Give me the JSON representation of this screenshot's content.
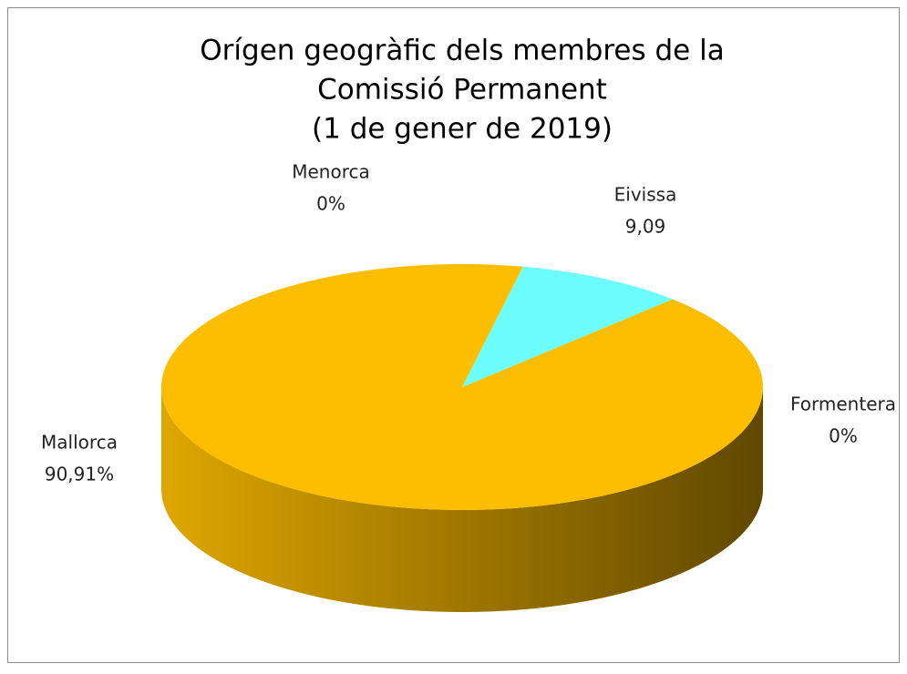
{
  "chart_data": {
    "type": "pie3d",
    "title": [
      "Orígen geogràfic dels membres de la",
      "Comissió Permanent",
      "(1 de gener de 2019)"
    ],
    "categories": [
      "Mallorca",
      "Menorca",
      "Eivissa",
      "Formentera"
    ],
    "values": [
      90.91,
      0,
      9.09,
      0
    ],
    "value_labels": [
      "90,91%",
      "0%",
      "9,09",
      "0%"
    ],
    "colors": [
      "#fdbd00",
      "#4f81bd",
      "#6efdfd",
      "#9bbb59"
    ]
  }
}
